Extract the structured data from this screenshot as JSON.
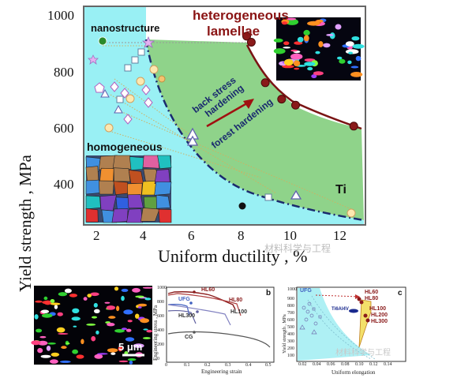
{
  "main_chart": {
    "ylabel": "Yield strength , MPa",
    "xlabel": "Uniform ductility , %",
    "yticks": [
      "1000",
      "800",
      "600",
      "400"
    ],
    "xticks": [
      "2",
      "4",
      "6",
      "8",
      "10",
      "12"
    ],
    "labels": {
      "nanostructure": "nanostructure",
      "heterogeneous": "heterogeneous",
      "lamellae": "lamellae",
      "homogeneous": "homogeneous",
      "back_stress": "back stress",
      "hardening": "hardening",
      "forest_hardening": "forest hardening",
      "ti": "Ti"
    },
    "colors": {
      "cyan": "#99f0f4",
      "green": "#8fd38a",
      "dark_red": "#7a1414",
      "frame": "#6a6a6a"
    }
  },
  "chart_data": [
    {
      "type": "scatter",
      "xlabel": "Uniform ductility , %",
      "ylabel": "Yield strength , MPa",
      "xlim": [
        1.2,
        13.3
      ],
      "ylim": [
        270,
        1000
      ],
      "series": [
        {
          "x": [
            8.2,
            8.4,
            9.0,
            9.7,
            10.3,
            12.8
          ],
          "y": [
            900,
            880,
            745,
            690,
            670,
            600
          ]
        }
      ]
    },
    {
      "type": "line",
      "panel": "b",
      "xlabel": "Engineering strain",
      "ylabel": "Engineering stress , MPa",
      "xticks": [
        "0",
        "0.1",
        "0.2",
        "0.3",
        "0.4",
        "0.5"
      ],
      "yticks": [
        "0",
        "200",
        "400",
        "600",
        "800",
        "1000"
      ],
      "series_labels": [
        "HL60",
        "HL80",
        "UFG",
        "HL100",
        "HL300",
        "CG"
      ]
    },
    {
      "type": "scatter",
      "panel": "c",
      "xlabel": "Uniform elongation",
      "ylabel": "Yield strength , MPa",
      "xticks": [
        "0.02",
        "0.04",
        "0.06",
        "0.08",
        "0.10",
        "0.12",
        "0.14"
      ],
      "yticks": [
        "100",
        "200",
        "300",
        "400",
        "500",
        "600",
        "700",
        "800",
        "900",
        "1000"
      ],
      "point_labels": [
        "UFG",
        "HL60",
        "HL80",
        "Ti6Al4V",
        "HL100",
        "HL200",
        "HL300"
      ]
    }
  ],
  "panel_b": {
    "letter": "b"
  },
  "panel_c": {
    "letter": "c"
  },
  "micro_bottom": {
    "scale": "5 μm"
  },
  "watermarks": {
    "main": "材料科学与工程",
    "panel_c": "材料科学与工程"
  }
}
